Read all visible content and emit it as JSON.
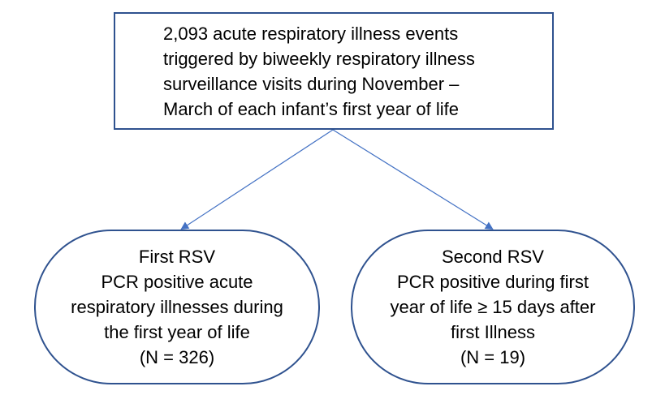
{
  "top_box": {
    "lines": [
      "2,093 acute respiratory illness events",
      "triggered by biweekly respiratory illness",
      "surveillance visits during November –",
      "March of each infant’s first year of life"
    ]
  },
  "left_box": {
    "lines": [
      "First RSV",
      "PCR positive acute",
      "respiratory illnesses during",
      "the first year of life",
      "(N = 326)"
    ]
  },
  "right_box": {
    "lines": [
      "Second RSV",
      "PCR positive during first",
      "year of life ≥ 15 days after",
      "first Illness",
      "(N = 19)"
    ]
  },
  "colors": {
    "border": "#2f528f",
    "arrow": "#4472c4"
  }
}
